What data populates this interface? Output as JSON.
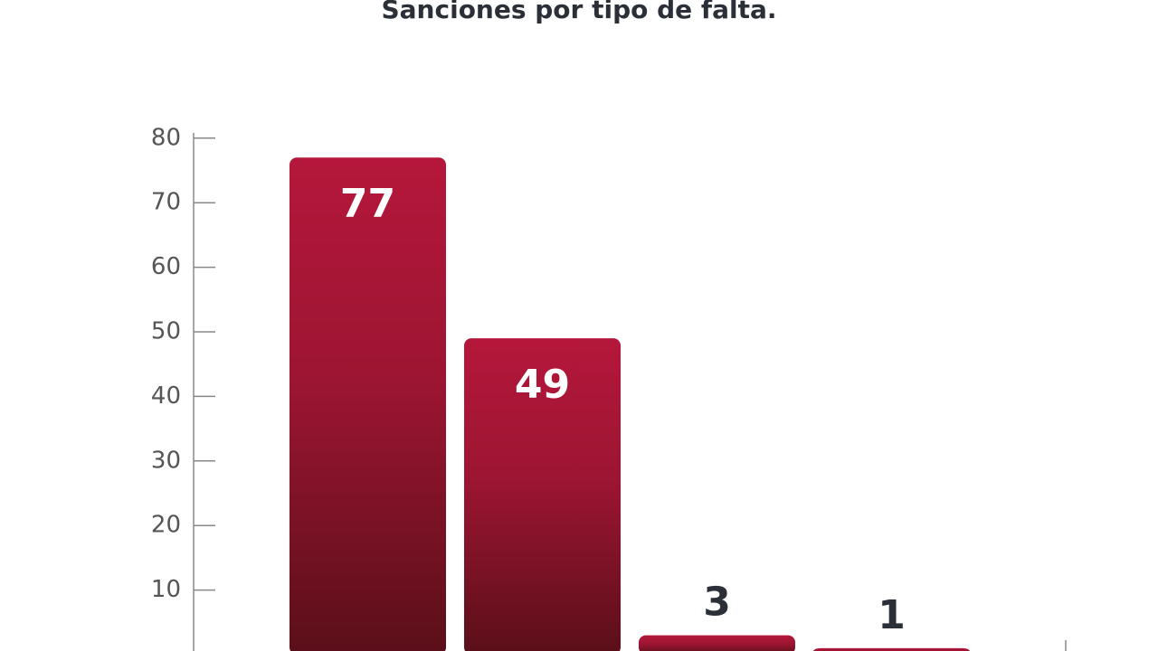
{
  "chart_data": {
    "type": "bar",
    "title": "Sanciones por tipo de falta.",
    "values": [
      77,
      49,
      3,
      1
    ],
    "color": "#b01839",
    "ylim": [
      0,
      80
    ],
    "yticks": [
      10,
      20,
      30,
      40,
      50,
      60,
      70,
      80
    ]
  }
}
